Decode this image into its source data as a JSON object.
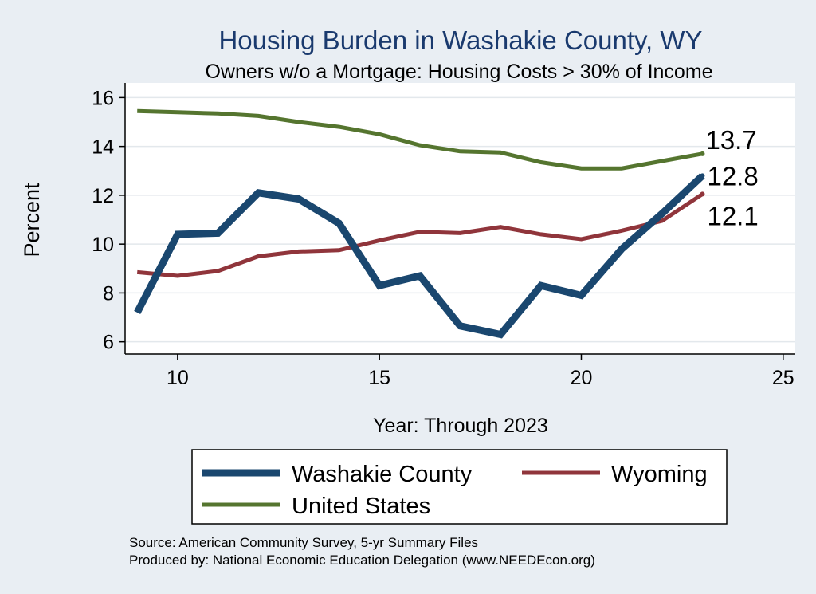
{
  "chart_data": {
    "type": "line",
    "title": "Housing Burden in Washakie County, WY",
    "subtitle": "Owners w/o a Mortgage: Housing Costs > 30% of Income",
    "xlabel": "Year: Through 2023",
    "ylabel": "Percent",
    "xlim": [
      8.7,
      25.3
    ],
    "ylim": [
      5.5,
      16.6
    ],
    "xticks": [
      10,
      15,
      20,
      25
    ],
    "yticks": [
      6,
      8,
      10,
      12,
      14,
      16
    ],
    "grid": true,
    "legend_position": "bottom",
    "series": [
      {
        "name": "Washakie County",
        "color": "#1a476f",
        "x": [
          9,
          10,
          11,
          12,
          13,
          14,
          15,
          16,
          17,
          18,
          19,
          20,
          21,
          22,
          23
        ],
        "values": [
          7.2,
          10.4,
          10.45,
          12.1,
          11.85,
          10.85,
          8.3,
          8.7,
          6.65,
          6.3,
          8.3,
          7.9,
          9.8,
          11.25,
          12.8
        ],
        "end_label": "12.8"
      },
      {
        "name": "Wyoming",
        "color": "#90353b",
        "x": [
          9,
          10,
          11,
          12,
          13,
          14,
          15,
          16,
          17,
          18,
          19,
          20,
          21,
          22,
          23
        ],
        "values": [
          8.85,
          8.7,
          8.9,
          9.5,
          9.7,
          9.75,
          10.15,
          10.5,
          10.45,
          10.7,
          10.4,
          10.2,
          10.55,
          10.95,
          12.05
        ],
        "end_label": "12.1"
      },
      {
        "name": "United States",
        "color": "#55752f",
        "x": [
          9,
          10,
          11,
          12,
          13,
          14,
          15,
          16,
          17,
          18,
          19,
          20,
          21,
          22,
          23
        ],
        "values": [
          15.45,
          15.4,
          15.35,
          15.25,
          15.0,
          14.8,
          14.5,
          14.05,
          13.8,
          13.75,
          13.35,
          13.1,
          13.1,
          13.4,
          13.7
        ],
        "end_label": "13.7"
      }
    ],
    "source_note": "Source: American Community Survey, 5-yr Summary Files",
    "producer_note": "Produced by: National Economic Education Delegation (www.NEEDEcon.org)"
  }
}
